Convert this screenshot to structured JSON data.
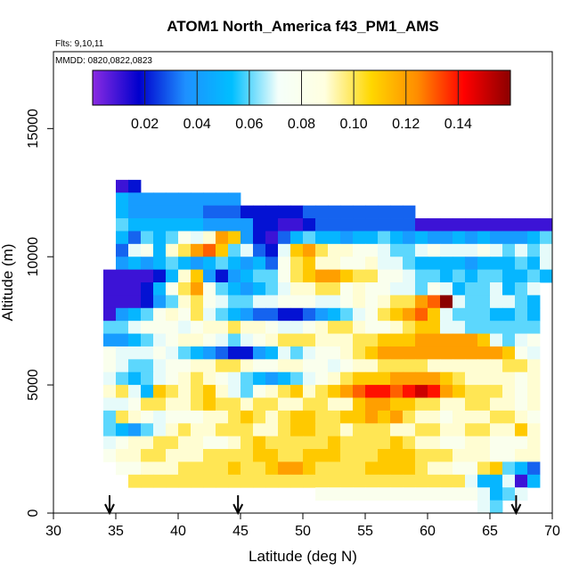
{
  "chart_data": {
    "type": "heatmap",
    "title": "ATOM1 North_America f43_PM1_AMS",
    "flights_label": "Flts: 9,10,11",
    "dates_label": "MMDD: 0820,0822,0823",
    "xlabel": "Latitude (deg N)",
    "ylabel": "Altitude (m)",
    "xlim": [
      30,
      70
    ],
    "ylim": [
      0,
      18000
    ],
    "x_ticks": [
      "30",
      "35",
      "40",
      "45",
      "50",
      "55",
      "60",
      "65",
      "70"
    ],
    "x_tick_values": [
      30,
      35,
      40,
      45,
      50,
      55,
      60,
      65,
      70
    ],
    "y_ticks": [
      "0",
      "5000",
      "10000",
      "15000"
    ],
    "y_tick_values": [
      0,
      5000,
      10000,
      15000
    ],
    "colorbar": {
      "min": 0.0,
      "max": 0.16,
      "tick_labels": [
        "0.02",
        "0.04",
        "0.06",
        "0.08",
        "0.10",
        "0.12",
        "0.14"
      ],
      "tick_values": [
        0.02,
        0.04,
        0.06,
        0.08,
        0.1,
        0.12,
        0.14
      ],
      "colors": [
        "#8a2be2",
        "#0000cd",
        "#1e90ff",
        "#00bfff",
        "#f5fffa",
        "#ffffe0",
        "#ffd700",
        "#ff8c00",
        "#ff0000",
        "#8b0000"
      ]
    },
    "arrows_at_latitude": [
      34.5,
      44.8,
      67.1
    ],
    "grid": {
      "cell_deg": 1.0,
      "cell_m": 500,
      "rows": [
        {
          "alt": 12750,
          "lat_start": 35.0,
          "values": [
            0.01,
            0.02
          ]
        },
        {
          "alt": 12250,
          "lat_start": 35.0,
          "values": [
            0.05,
            0.04,
            0.04,
            0.04,
            0.04,
            0.04,
            0.04,
            0.04,
            0.04,
            0.04
          ]
        },
        {
          "alt": 11750,
          "lat_start": 35.0,
          "values": [
            0.05,
            0.04,
            0.04,
            0.04,
            0.04,
            0.04,
            0.04,
            0.03,
            0.03,
            0.03,
            0.02,
            0.02,
            0.02,
            0.02,
            0.02,
            0.03,
            0.03,
            0.03,
            0.03,
            0.03,
            0.03,
            0.03,
            0.03,
            0.03
          ]
        },
        {
          "alt": 11250,
          "lat_start": 35.0,
          "values": [
            0.06,
            0.05,
            0.05,
            0.05,
            0.05,
            0.05,
            0.05,
            0.04,
            0.04,
            0.04,
            0.04,
            0.02,
            0.02,
            0.01,
            0.01,
            0.02,
            0.03,
            0.03,
            0.03,
            0.03,
            0.03,
            0.03,
            0.03,
            0.03,
            0.01,
            0.01,
            0.01,
            0.01,
            0.01,
            0.01,
            0.01,
            0.01,
            0.01,
            0.01,
            0.01
          ]
        },
        {
          "alt": 10750,
          "lat_start": 35.0,
          "values": [
            0.05,
            0.03,
            0.06,
            0.05,
            0.06,
            0.08,
            0.07,
            0.09,
            0.12,
            0.11,
            0.04,
            0.02,
            0.01,
            0.03,
            0.05,
            0.06,
            0.05,
            0.05,
            0.04,
            0.05,
            0.05,
            0.06,
            0.05,
            0.04,
            0.05,
            0.04,
            0.04,
            0.05,
            0.04,
            0.05,
            0.04,
            0.04,
            0.04,
            0.05,
            0.06
          ]
        },
        {
          "alt": 10250,
          "lat_start": 35.0,
          "values": [
            0.03,
            0.07,
            0.08,
            0.05,
            0.09,
            0.1,
            0.12,
            0.13,
            0.11,
            0.06,
            0.07,
            0.03,
            0.02,
            0.07,
            0.11,
            0.12,
            0.1,
            0.09,
            0.09,
            0.08,
            0.08,
            0.07,
            0.06,
            0.06,
            0.07,
            0.08,
            0.07,
            0.07,
            0.07,
            0.08,
            0.07,
            0.06,
            0.07,
            0.06,
            0.07
          ]
        },
        {
          "alt": 9750,
          "lat_start": 35.0,
          "values": [
            0.04,
            0.05,
            0.04,
            0.05,
            0.06,
            0.05,
            0.04,
            0.05,
            0.06,
            0.05,
            0.04,
            0.05,
            0.03,
            0.08,
            0.1,
            0.11,
            0.09,
            0.09,
            0.08,
            0.08,
            0.09,
            0.07,
            0.07,
            0.06,
            0.05,
            0.05,
            0.05,
            0.05,
            0.04,
            0.05,
            0.05,
            0.05,
            0.06,
            0.05,
            0.07
          ]
        },
        {
          "alt": 9250,
          "lat_start": 34.0,
          "values": [
            0.01,
            0.01,
            0.01,
            0.01,
            0.02,
            0.05,
            0.09,
            0.11,
            0.04,
            0.02,
            0.04,
            0.05,
            0.06,
            0.06,
            0.08,
            0.1,
            0.11,
            0.12,
            0.12,
            0.11,
            0.1,
            0.1,
            0.08,
            0.08,
            0.07,
            0.06,
            0.06,
            0.05,
            0.06,
            0.05,
            0.06,
            0.06,
            0.05,
            0.05,
            0.06,
            0.05
          ]
        },
        {
          "alt": 8750,
          "lat_start": 34.0,
          "values": [
            0.01,
            0.01,
            0.01,
            0.02,
            0.05,
            0.08,
            0.1,
            0.12,
            0.08,
            0.06,
            0.05,
            0.04,
            0.05,
            0.06,
            0.07,
            0.09,
            0.09,
            0.1,
            0.1,
            0.08,
            0.09,
            0.08,
            0.08,
            0.07,
            0.07,
            0.06,
            0.08,
            0.07,
            0.05,
            0.06,
            0.06,
            0.07,
            0.05,
            0.06,
            0.07
          ]
        },
        {
          "alt": 8250,
          "lat_start": 34.0,
          "values": [
            0.01,
            0.01,
            0.01,
            0.02,
            0.04,
            0.06,
            0.09,
            0.1,
            0.08,
            0.07,
            0.06,
            0.06,
            0.07,
            0.07,
            0.08,
            0.08,
            0.08,
            0.07,
            0.07,
            0.08,
            0.09,
            0.08,
            0.09,
            0.1,
            0.1,
            0.12,
            0.13,
            0.16,
            0.07,
            0.06,
            0.06,
            0.07,
            0.07,
            0.06,
            0.05
          ]
        },
        {
          "alt": 7750,
          "lat_start": 34.0,
          "values": [
            0.01,
            0.04,
            0.05,
            0.06,
            0.08,
            0.09,
            0.08,
            0.1,
            0.07,
            0.06,
            0.05,
            0.04,
            0.03,
            0.03,
            0.02,
            0.02,
            0.03,
            0.04,
            0.05,
            0.06,
            0.07,
            0.08,
            0.1,
            0.11,
            0.12,
            0.13,
            0.11,
            0.07,
            0.06,
            0.06,
            0.06,
            0.05,
            0.05,
            0.06,
            0.05
          ]
        },
        {
          "alt": 7250,
          "lat_start": 34.0,
          "values": [
            0.06,
            0.06,
            0.07,
            0.08,
            0.08,
            0.08,
            0.07,
            0.08,
            0.09,
            0.09,
            0.1,
            0.09,
            0.09,
            0.08,
            0.07,
            0.07,
            0.08,
            0.09,
            0.1,
            0.1,
            0.09,
            0.08,
            0.08,
            0.09,
            0.1,
            0.11,
            0.11,
            0.07,
            0.07,
            0.06,
            0.06,
            0.06,
            0.06,
            0.06,
            0.06
          ]
        },
        {
          "alt": 6750,
          "lat_start": 34.0,
          "values": [
            0.04,
            0.04,
            0.05,
            0.06,
            0.07,
            0.08,
            0.09,
            0.09,
            0.08,
            0.07,
            0.06,
            0.07,
            0.08,
            0.09,
            0.1,
            0.1,
            0.1,
            0.09,
            0.09,
            0.09,
            0.1,
            0.1,
            0.11,
            0.11,
            0.11,
            0.12,
            0.12,
            0.12,
            0.12,
            0.12,
            0.11,
            0.07,
            0.06,
            0.07,
            0.08
          ]
        },
        {
          "alt": 6250,
          "lat_start": 34.0,
          "values": [
            0.08,
            0.07,
            0.07,
            0.07,
            0.08,
            0.07,
            0.06,
            0.05,
            0.04,
            0.03,
            0.02,
            0.02,
            0.04,
            0.05,
            0.07,
            0.06,
            0.07,
            0.08,
            0.08,
            0.09,
            0.1,
            0.11,
            0.12,
            0.12,
            0.12,
            0.12,
            0.12,
            0.12,
            0.12,
            0.12,
            0.12,
            0.12,
            0.11,
            0.08,
            0.07
          ]
        },
        {
          "alt": 5750,
          "lat_start": 34.0,
          "values": [
            0.08,
            0.07,
            0.06,
            0.06,
            0.07,
            0.08,
            0.08,
            0.09,
            0.09,
            0.1,
            0.1,
            0.09,
            0.08,
            0.08,
            0.09,
            0.09,
            0.08,
            0.08,
            0.07,
            0.08,
            0.09,
            0.09,
            0.1,
            0.1,
            0.1,
            0.1,
            0.09,
            0.09,
            0.09,
            0.09,
            0.09,
            0.09,
            0.1,
            0.1,
            0.09
          ]
        },
        {
          "alt": 5250,
          "lat_start": 34.0,
          "values": [
            0.07,
            0.06,
            0.05,
            0.06,
            0.07,
            0.08,
            0.09,
            0.1,
            0.09,
            0.08,
            0.07,
            0.06,
            0.05,
            0.04,
            0.05,
            0.06,
            0.07,
            0.08,
            0.09,
            0.1,
            0.11,
            0.11,
            0.11,
            0.12,
            0.12,
            0.12,
            0.12,
            0.11,
            0.1,
            0.09,
            0.09,
            0.09,
            0.09,
            0.08,
            0.09
          ]
        },
        {
          "alt": 4750,
          "lat_start": 34.0,
          "values": [
            0.09,
            0.1,
            0.07,
            0.05,
            0.11,
            0.1,
            0.09,
            0.1,
            0.11,
            0.09,
            0.07,
            0.06,
            0.08,
            0.09,
            0.1,
            0.11,
            0.09,
            0.1,
            0.11,
            0.12,
            0.13,
            0.14,
            0.14,
            0.13,
            0.14,
            0.15,
            0.14,
            0.12,
            0.11,
            0.1,
            0.1,
            0.1,
            0.09,
            0.08,
            0.09
          ]
        },
        {
          "alt": 4250,
          "lat_start": 34.0,
          "values": [
            0.07,
            0.07,
            0.08,
            0.1,
            0.1,
            0.09,
            0.09,
            0.1,
            0.11,
            0.1,
            0.1,
            0.09,
            0.1,
            0.1,
            0.09,
            0.09,
            0.1,
            0.1,
            0.09,
            0.09,
            0.11,
            0.12,
            0.12,
            0.11,
            0.11,
            0.1,
            0.1,
            0.09,
            0.09,
            0.1,
            0.1,
            0.09,
            0.09,
            0.08,
            0.09
          ]
        },
        {
          "alt": 3750,
          "lat_start": 34.0,
          "values": [
            0.06,
            0.1,
            0.09,
            0.08,
            0.07,
            0.08,
            0.08,
            0.08,
            0.09,
            0.09,
            0.1,
            0.11,
            0.1,
            0.09,
            0.1,
            0.11,
            0.11,
            0.1,
            0.1,
            0.11,
            0.11,
            0.12,
            0.11,
            0.12,
            0.1,
            0.09,
            0.09,
            0.08,
            0.09,
            0.09,
            0.09,
            0.1,
            0.1,
            0.09,
            0.08
          ]
        },
        {
          "alt": 3250,
          "lat_start": 34.0,
          "values": [
            0.06,
            0.05,
            0.04,
            0.06,
            0.07,
            0.09,
            0.1,
            0.09,
            0.09,
            0.1,
            0.1,
            0.1,
            0.09,
            0.09,
            0.1,
            0.11,
            0.11,
            0.1,
            0.1,
            0.09,
            0.1,
            0.1,
            0.1,
            0.09,
            0.09,
            0.1,
            0.1,
            0.09,
            0.09,
            0.1,
            0.1,
            0.09,
            0.09,
            0.11,
            0.09
          ]
        },
        {
          "alt": 2750,
          "lat_start": 34.0,
          "values": [
            0.07,
            0.08,
            0.09,
            0.09,
            0.1,
            0.1,
            0.09,
            0.09,
            0.08,
            0.08,
            0.09,
            0.1,
            0.11,
            0.1,
            0.1,
            0.1,
            0.1,
            0.1,
            0.11,
            0.1,
            0.1,
            0.1,
            0.1,
            0.11,
            0.1,
            0.09,
            0.09,
            0.08,
            0.08,
            0.09,
            0.09,
            0.08,
            0.08,
            0.08,
            0.09
          ]
        },
        {
          "alt": 2250,
          "lat_start": 34.0,
          "values": [
            0.08,
            0.09,
            0.09,
            0.1,
            0.1,
            0.09,
            0.09,
            0.09,
            0.1,
            0.1,
            0.1,
            0.1,
            0.11,
            0.11,
            0.1,
            0.1,
            0.11,
            0.11,
            0.11,
            0.1,
            0.1,
            0.1,
            0.11,
            0.11,
            0.11,
            0.1,
            0.1,
            0.1,
            0.09,
            0.09,
            0.09,
            0.08,
            0.08,
            0.09,
            0.09
          ]
        },
        {
          "alt": 1750,
          "lat_start": 35.0,
          "values": [
            0.08,
            0.08,
            0.09,
            0.09,
            0.09,
            0.1,
            0.1,
            0.1,
            0.1,
            0.11,
            0.1,
            0.1,
            0.11,
            0.12,
            0.12,
            0.11,
            0.1,
            0.1,
            0.1,
            0.1,
            0.11,
            0.11,
            0.11,
            0.11,
            0.1,
            0.09,
            0.09,
            0.08,
            0.08,
            0.1,
            0.11,
            0.06,
            0.05,
            0.03
          ]
        },
        {
          "alt": 1250,
          "lat_start": 36.0,
          "values": [
            0.1,
            0.1,
            0.1,
            0.1,
            0.1,
            0.1,
            0.1,
            0.1,
            0.1,
            0.1,
            0.1,
            0.1,
            0.1,
            0.1,
            0.1,
            0.1,
            0.1,
            0.1,
            0.1,
            0.1,
            0.1,
            0.1,
            0.1,
            0.1,
            0.1,
            0.1,
            0.1,
            0.07,
            0.05,
            0.05,
            0.07,
            0.01,
            0.05
          ]
        },
        {
          "alt": 750,
          "lat_start": 51.0,
          "values": [
            0.08,
            0.08,
            0.08,
            0.08,
            0.08,
            0.08,
            0.08,
            0.08,
            0.08,
            0.08,
            0.08,
            0.08,
            0.08,
            0.07,
            0.05,
            0.06,
            0.07
          ]
        },
        {
          "alt": 250,
          "lat_start": 64.0,
          "values": [
            0.07,
            0.06
          ]
        }
      ]
    }
  }
}
